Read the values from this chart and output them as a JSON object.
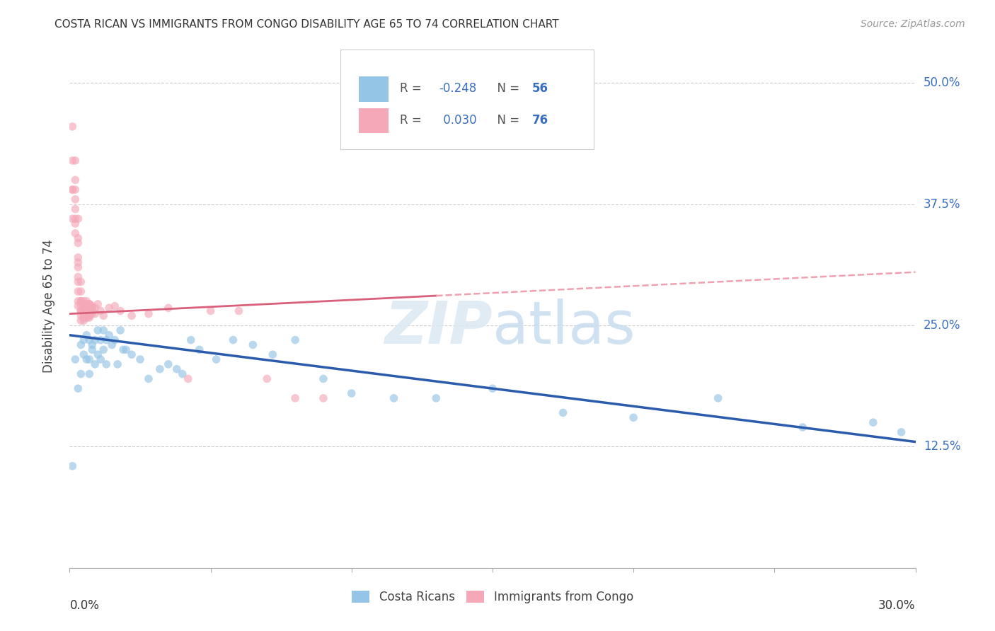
{
  "title": "COSTA RICAN VS IMMIGRANTS FROM CONGO DISABILITY AGE 65 TO 74 CORRELATION CHART",
  "source": "Source: ZipAtlas.com",
  "ylabel": "Disability Age 65 to 74",
  "yticks": [
    0.0,
    0.125,
    0.25,
    0.375,
    0.5
  ],
  "ytick_labels": [
    "",
    "12.5%",
    "25.0%",
    "37.5%",
    "50.0%"
  ],
  "xlim": [
    0.0,
    0.3
  ],
  "ylim": [
    0.0,
    0.54
  ],
  "watermark_zip": "ZIP",
  "watermark_atlas": "atlas",
  "legend_blue_r": "R = -0.248",
  "legend_blue_n": "N = 56",
  "legend_pink_r": "R =  0.030",
  "legend_pink_n": "N = 76",
  "legend_label_blue": "Costa Ricans",
  "legend_label_pink": "Immigrants from Congo",
  "blue_color": "#94C4E6",
  "pink_color": "#F5A8B8",
  "blue_line_color": "#2B5BAD",
  "pink_line_color": "#D9607A",
  "pink_dash_color": "#F0A0B0",
  "dot_size": 70,
  "dot_alpha": 0.65,
  "blue_x": [
    0.001,
    0.002,
    0.003,
    0.004,
    0.004,
    0.005,
    0.005,
    0.006,
    0.006,
    0.007,
    0.007,
    0.007,
    0.008,
    0.008,
    0.009,
    0.009,
    0.01,
    0.01,
    0.011,
    0.011,
    0.012,
    0.012,
    0.013,
    0.013,
    0.014,
    0.015,
    0.016,
    0.017,
    0.018,
    0.019,
    0.02,
    0.022,
    0.025,
    0.028,
    0.032,
    0.035,
    0.038,
    0.04,
    0.043,
    0.046,
    0.052,
    0.058,
    0.065,
    0.072,
    0.08,
    0.09,
    0.1,
    0.115,
    0.13,
    0.15,
    0.175,
    0.2,
    0.23,
    0.26,
    0.285,
    0.295
  ],
  "blue_y": [
    0.105,
    0.215,
    0.185,
    0.23,
    0.2,
    0.235,
    0.22,
    0.24,
    0.215,
    0.235,
    0.2,
    0.215,
    0.23,
    0.225,
    0.235,
    0.21,
    0.245,
    0.22,
    0.235,
    0.215,
    0.245,
    0.225,
    0.235,
    0.21,
    0.24,
    0.23,
    0.235,
    0.21,
    0.245,
    0.225,
    0.225,
    0.22,
    0.215,
    0.195,
    0.205,
    0.21,
    0.205,
    0.2,
    0.235,
    0.225,
    0.215,
    0.235,
    0.23,
    0.22,
    0.235,
    0.195,
    0.18,
    0.175,
    0.175,
    0.185,
    0.16,
    0.155,
    0.175,
    0.145,
    0.15,
    0.14
  ],
  "pink_x": [
    0.001,
    0.001,
    0.001,
    0.002,
    0.002,
    0.002,
    0.002,
    0.002,
    0.002,
    0.003,
    0.003,
    0.003,
    0.003,
    0.003,
    0.003,
    0.003,
    0.003,
    0.003,
    0.004,
    0.004,
    0.004,
    0.004,
    0.004,
    0.004,
    0.004,
    0.004,
    0.004,
    0.005,
    0.005,
    0.005,
    0.005,
    0.005,
    0.005,
    0.005,
    0.005,
    0.005,
    0.006,
    0.006,
    0.006,
    0.006,
    0.006,
    0.006,
    0.007,
    0.007,
    0.007,
    0.007,
    0.007,
    0.007,
    0.007,
    0.008,
    0.008,
    0.008,
    0.008,
    0.009,
    0.009,
    0.01,
    0.011,
    0.012,
    0.014,
    0.016,
    0.018,
    0.022,
    0.028,
    0.035,
    0.042,
    0.05,
    0.06,
    0.07,
    0.08,
    0.09,
    0.001,
    0.001,
    0.002,
    0.002,
    0.003,
    0.003
  ],
  "pink_y": [
    0.455,
    0.42,
    0.39,
    0.42,
    0.4,
    0.39,
    0.38,
    0.37,
    0.36,
    0.36,
    0.34,
    0.32,
    0.31,
    0.3,
    0.295,
    0.285,
    0.275,
    0.27,
    0.295,
    0.285,
    0.275,
    0.27,
    0.265,
    0.26,
    0.255,
    0.275,
    0.265,
    0.275,
    0.265,
    0.258,
    0.255,
    0.268,
    0.262,
    0.272,
    0.265,
    0.258,
    0.272,
    0.265,
    0.258,
    0.275,
    0.268,
    0.26,
    0.272,
    0.265,
    0.26,
    0.268,
    0.272,
    0.26,
    0.258,
    0.268,
    0.262,
    0.27,
    0.265,
    0.268,
    0.262,
    0.272,
    0.265,
    0.26,
    0.268,
    0.27,
    0.265,
    0.26,
    0.262,
    0.268,
    0.195,
    0.265,
    0.265,
    0.195,
    0.175,
    0.175,
    0.39,
    0.36,
    0.355,
    0.345,
    0.335,
    0.315
  ]
}
